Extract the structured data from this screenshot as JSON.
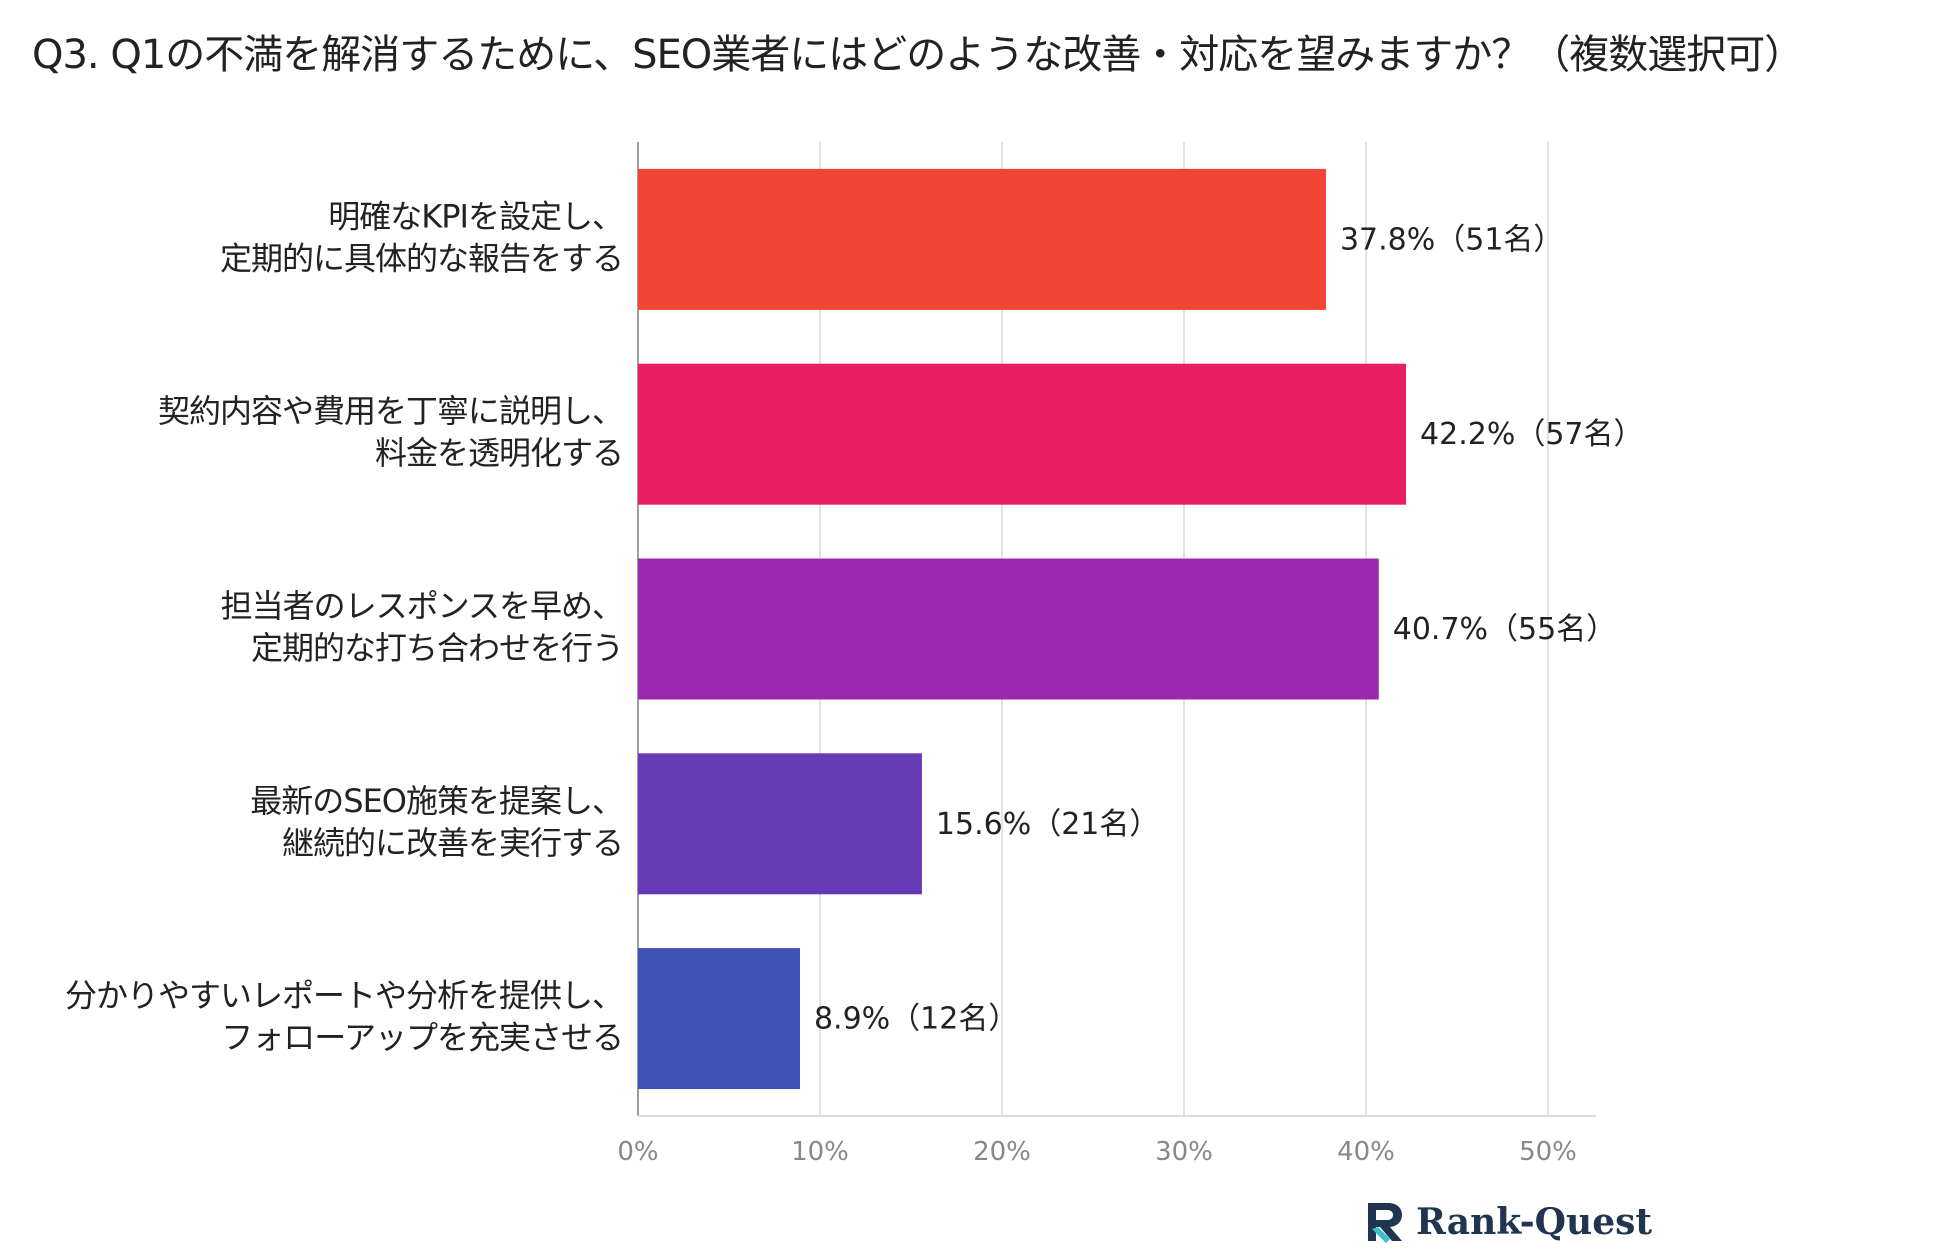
{
  "title": "Q3. Q1の不満を解消するために、SEO業者にはどのような改善・対応を望みますか？（複数選択可）",
  "chart_data": {
    "type": "bar",
    "orientation": "horizontal",
    "categories": [
      [
        "明確なKPIを設定し、",
        "定期的に具体的な報告をする"
      ],
      [
        "契約内容や費用を丁寧に説明し、",
        "料金を透明化する"
      ],
      [
        "担当者のレスポンスを早め、",
        "定期的な打ち合わせを行う"
      ],
      [
        "最新のSEO施策を提案し、",
        "継続的に改善を実行する"
      ],
      [
        "分かりやすいレポートや分析を提供し、",
        "フォローアップを充実させる"
      ]
    ],
    "values": [
      37.8,
      42.2,
      40.7,
      15.6,
      8.9
    ],
    "data_labels": [
      "37.8%（51名）",
      "42.2%（57名）",
      "40.7%（55名）",
      "15.6%（21名）",
      "8.9%（12名）"
    ],
    "colors": [
      "#f34436",
      "#e91e63",
      "#9c27b0",
      "#673ab7",
      "#3f51b5"
    ],
    "xlim": [
      0,
      50
    ],
    "ticks": [
      0,
      10,
      20,
      30,
      40,
      50
    ],
    "tick_labels": [
      "0%",
      "10%",
      "20%",
      "30%",
      "40%",
      "50%"
    ],
    "grid": true
  },
  "logo": {
    "text": "Rank-Quest",
    "color": "#1f3550",
    "accent": "#3cc0d0"
  }
}
